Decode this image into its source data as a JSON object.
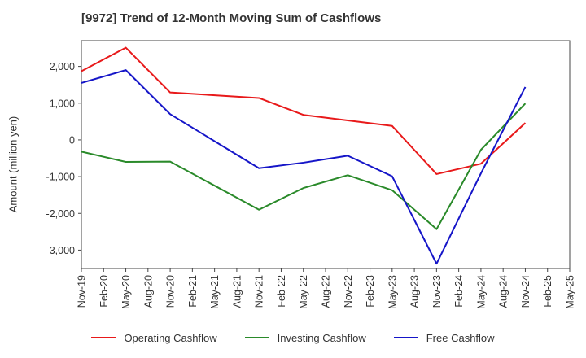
{
  "chart_data": {
    "type": "line",
    "title": "[9972]  Trend of 12-Month Moving Sum of Cashflows",
    "xlabel": "",
    "ylabel": "Amount (million yen)",
    "ylim": [
      -3500,
      2700
    ],
    "yticks": [
      2000,
      1000,
      0,
      -1000,
      -2000,
      -3000
    ],
    "ytick_labels": [
      "2,000",
      "1,000",
      "0",
      "-1,000",
      "-2,000",
      "-3,000"
    ],
    "categories": [
      "Nov-19",
      "Feb-20",
      "May-20",
      "Aug-20",
      "Nov-20",
      "Feb-21",
      "May-21",
      "Aug-21",
      "Nov-21",
      "Feb-22",
      "May-22",
      "Aug-22",
      "Nov-22",
      "Feb-23",
      "May-23",
      "Aug-23",
      "Nov-23",
      "Feb-24",
      "May-24",
      "Aug-24",
      "Nov-24",
      "Feb-25",
      "May-25"
    ],
    "grid": true,
    "legend_position": "bottom",
    "series": [
      {
        "name": "Operating Cashflow",
        "color": "#e8191a",
        "values": [
          1870,
          null,
          2510,
          null,
          1290,
          null,
          null,
          null,
          1140,
          null,
          680,
          null,
          530,
          null,
          380,
          null,
          -930,
          null,
          -650,
          null,
          460,
          null,
          null
        ]
      },
      {
        "name": "Investing Cashflow",
        "color": "#2a8a2a",
        "values": [
          -320,
          null,
          -600,
          null,
          -590,
          null,
          null,
          null,
          -1900,
          null,
          -1310,
          null,
          -960,
          null,
          -1370,
          null,
          -2430,
          null,
          -270,
          null,
          990,
          null,
          null
        ]
      },
      {
        "name": "Free Cashflow",
        "color": "#1515c8",
        "values": [
          1550,
          null,
          1900,
          null,
          700,
          null,
          null,
          null,
          -770,
          null,
          -620,
          null,
          -430,
          null,
          -990,
          null,
          -3370,
          null,
          -910,
          null,
          1440,
          null,
          null
        ]
      }
    ]
  }
}
